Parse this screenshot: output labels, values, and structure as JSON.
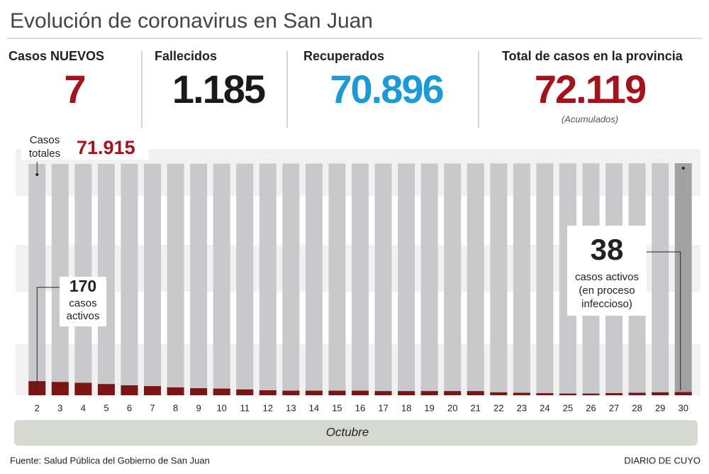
{
  "header": {
    "title": "Evolución de coronavirus en San Juan",
    "stats": [
      {
        "label": "Casos NUEVOS",
        "value": "7",
        "color": "#a5121c"
      },
      {
        "label": "Fallecidos",
        "value": "1.185",
        "color": "#1a1a1a"
      },
      {
        "label": "Recuperados",
        "value": "70.896",
        "color": "#1a9ad6"
      },
      {
        "label": "Total de casos en la provincia",
        "value": "72.119",
        "color": "#a5121c",
        "note": "(Acumulados)"
      }
    ]
  },
  "chart_data": {
    "type": "bar",
    "categories": [
      "2",
      "3",
      "4",
      "5",
      "6",
      "7",
      "8",
      "9",
      "10",
      "11",
      "12",
      "13",
      "14",
      "15",
      "16",
      "17",
      "18",
      "19",
      "20",
      "21",
      "22",
      "23",
      "24",
      "25",
      "26",
      "27",
      "28",
      "29",
      "30"
    ],
    "x_label": "Octubre",
    "ylim": [
      0,
      72119
    ],
    "y2lim": [
      0,
      2800
    ],
    "series": [
      {
        "name": "Casos totales",
        "color": "#c9c9cb",
        "values": [
          71915,
          71922,
          71930,
          71937,
          71944,
          71951,
          71959,
          71966,
          71973,
          71981,
          71988,
          71995,
          72002,
          72010,
          72017,
          72024,
          72032,
          72039,
          72046,
          72053,
          72061,
          72068,
          72075,
          72083,
          72090,
          72097,
          72104,
          72112,
          72119
        ]
      },
      {
        "name": "casos activos",
        "color": "#7b1414",
        "axis": "y2",
        "values": [
          170,
          160,
          150,
          135,
          120,
          110,
          95,
          85,
          80,
          70,
          60,
          55,
          55,
          55,
          55,
          50,
          50,
          50,
          50,
          50,
          35,
          30,
          25,
          20,
          20,
          25,
          30,
          35,
          38
        ]
      }
    ],
    "annotations": {
      "totals": {
        "lines": [
          "Casos",
          "totales"
        ],
        "value": "71.915"
      },
      "first": {
        "lines": [
          "casos",
          "activos"
        ]
      },
      "last": {
        "lines": [
          "casos activos",
          "(en proceso",
          "infeccioso)"
        ]
      }
    },
    "source": "Fuente: Salud Pública del Gobierno de San Juan",
    "credit": "DIARIO DE CUYO"
  }
}
